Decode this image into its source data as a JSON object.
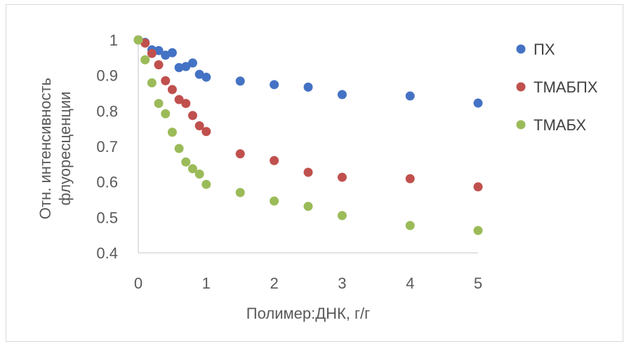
{
  "chart_data": {
    "type": "scatter",
    "xlabel": "Полимер:ДНК, г/г",
    "ylabel_line1": "Отн. интенсивность",
    "ylabel_line2": "флуоресценции",
    "xlim": [
      0,
      5
    ],
    "ylim": [
      0.4,
      1.0
    ],
    "x_ticks": [
      "0",
      "1",
      "2",
      "3",
      "4",
      "5"
    ],
    "y_ticks": [
      "0.4",
      "0.5",
      "0.6",
      "0.7",
      "0.8",
      "0.9",
      "1"
    ],
    "grid": false,
    "legend_position": "right",
    "series": [
      {
        "name": "ПХ",
        "color": "#4472c4",
        "points": [
          [
            0,
            1.0
          ],
          [
            0.1,
            0.993
          ],
          [
            0.2,
            0.972
          ],
          [
            0.3,
            0.97
          ],
          [
            0.4,
            0.957
          ],
          [
            0.5,
            0.964
          ],
          [
            0.6,
            0.922
          ],
          [
            0.7,
            0.925
          ],
          [
            0.8,
            0.935
          ],
          [
            0.9,
            0.903
          ],
          [
            1.0,
            0.895
          ],
          [
            1.5,
            0.884
          ],
          [
            2.0,
            0.874
          ],
          [
            2.5,
            0.867
          ],
          [
            3.0,
            0.846
          ],
          [
            4.0,
            0.842
          ],
          [
            5.0,
            0.822
          ]
        ]
      },
      {
        "name": "ТМАБПХ",
        "color": "#c0504d",
        "points": [
          [
            0,
            1.0
          ],
          [
            0.1,
            0.991
          ],
          [
            0.2,
            0.962
          ],
          [
            0.3,
            0.93
          ],
          [
            0.4,
            0.885
          ],
          [
            0.5,
            0.86
          ],
          [
            0.6,
            0.832
          ],
          [
            0.7,
            0.821
          ],
          [
            0.8,
            0.787
          ],
          [
            0.9,
            0.758
          ],
          [
            1.0,
            0.742
          ],
          [
            1.5,
            0.679
          ],
          [
            2.0,
            0.66
          ],
          [
            2.5,
            0.627
          ],
          [
            3.0,
            0.613
          ],
          [
            4.0,
            0.609
          ],
          [
            5.0,
            0.586
          ]
        ]
      },
      {
        "name": "ТМАБХ",
        "color": "#9bbb59",
        "points": [
          [
            0,
            1.0
          ],
          [
            0.1,
            0.944
          ],
          [
            0.2,
            0.879
          ],
          [
            0.3,
            0.821
          ],
          [
            0.4,
            0.792
          ],
          [
            0.5,
            0.74
          ],
          [
            0.6,
            0.694
          ],
          [
            0.7,
            0.656
          ],
          [
            0.8,
            0.637
          ],
          [
            0.9,
            0.622
          ],
          [
            1.0,
            0.593
          ],
          [
            1.5,
            0.57
          ],
          [
            2.0,
            0.546
          ],
          [
            2.5,
            0.531
          ],
          [
            3.0,
            0.505
          ],
          [
            4.0,
            0.477
          ],
          [
            5.0,
            0.463
          ]
        ]
      }
    ]
  }
}
